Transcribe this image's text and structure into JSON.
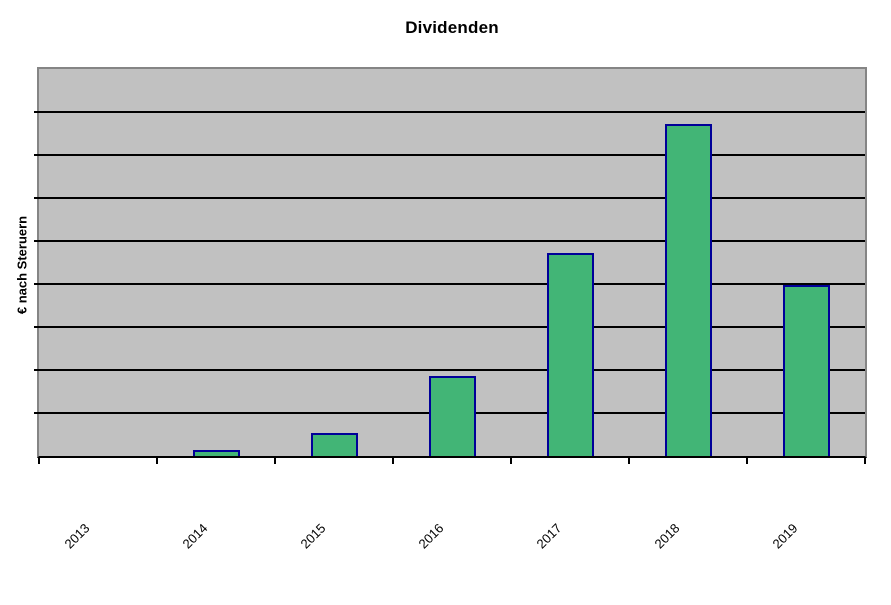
{
  "chart_data": {
    "type": "bar",
    "title": "Dividenden",
    "ylabel": "€ nach Steruern",
    "xlabel": "",
    "categories": [
      "2013",
      "2014",
      "2015",
      "2016",
      "2017",
      "2018",
      "2019"
    ],
    "values": [
      0,
      0.14,
      0.53,
      1.85,
      4.73,
      7.71,
      3.97
    ],
    "ylim": [
      0,
      9
    ],
    "gridline_divisions": 9,
    "y_tick_labels_visible": false,
    "grid": true,
    "legend_position": "none",
    "x_tick_rotation": -45
  },
  "colors": {
    "plot_background": "#c1c1c1",
    "plot_border": "#858585",
    "gridline": "#000000",
    "axis_line": "#000000",
    "bar_fill": "#42b576",
    "bar_border": "#000099",
    "text": "#000000"
  }
}
